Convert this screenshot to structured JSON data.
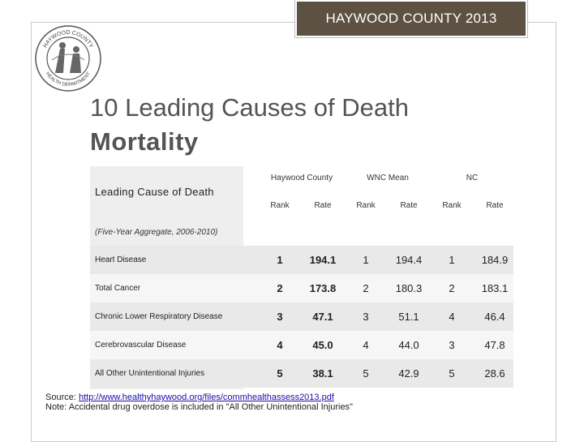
{
  "header": {
    "banner": "HAYWOOD COUNTY  2013"
  },
  "logo": {
    "text_top": "HAYWOOD COUNTY",
    "text_bottom": "HEALTH DEPARTMENT"
  },
  "slide": {
    "title": "10 Leading Causes of Death",
    "subtitle": "Mortality"
  },
  "table": {
    "row_header": "Leading Cause of Death",
    "aggregate_note": "(Five-Year Aggregate, 2006-2010)",
    "groups": [
      {
        "label": "Haywood County",
        "rank_label": "Rank",
        "rate_label": "Rate"
      },
      {
        "label": "WNC Mean",
        "rank_label": "Rank",
        "rate_label": "Rate"
      },
      {
        "label": "NC",
        "rank_label": "Rank",
        "rate_label": "Rate"
      }
    ],
    "rows": [
      {
        "cause": "Heart Disease",
        "hay_rank": "1",
        "hay_rate": "194.1",
        "wnc_rank": "1",
        "wnc_rate": "194.4",
        "nc_rank": "1",
        "nc_rate": "184.9"
      },
      {
        "cause": "Total Cancer",
        "hay_rank": "2",
        "hay_rate": "173.8",
        "wnc_rank": "2",
        "wnc_rate": "180.3",
        "nc_rank": "2",
        "nc_rate": "183.1"
      },
      {
        "cause": "Chronic Lower Respiratory Disease",
        "hay_rank": "3",
        "hay_rate": "47.1",
        "wnc_rank": "3",
        "wnc_rate": "51.1",
        "nc_rank": "4",
        "nc_rate": "46.4"
      },
      {
        "cause": "Cerebrovascular Disease",
        "hay_rank": "4",
        "hay_rate": "45.0",
        "wnc_rank": "4",
        "wnc_rate": "44.0",
        "nc_rank": "3",
        "nc_rate": "47.8"
      },
      {
        "cause": "All Other Unintentional Injuries",
        "hay_rank": "5",
        "hay_rate": "38.1",
        "wnc_rank": "5",
        "wnc_rate": "42.9",
        "nc_rank": "5",
        "nc_rate": "28.6"
      }
    ]
  },
  "footer": {
    "source_label": "Source:",
    "source_url": "http://www.healthyhaywood.org/files/commhealthassess2013.pdf",
    "note": "Note:  Accidental drug overdose is included in \"All Other Unintentional Injuries\""
  },
  "colors": {
    "banner_bg": "#5c5142",
    "title_text": "#545454",
    "row_alt": "#e9e9e9"
  }
}
